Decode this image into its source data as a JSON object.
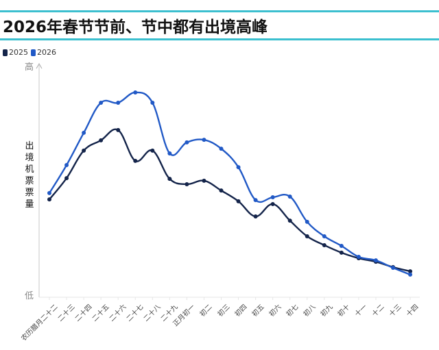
{
  "title": "2026年春节节前、节中都有出境高峰",
  "legend": [
    {
      "label": "2025",
      "color": "#14244a"
    },
    {
      "label": "2026",
      "color": "#2159c6"
    }
  ],
  "axis": {
    "y_title": "出境机票票量",
    "y_high": "高",
    "y_low": "低"
  },
  "chart_data": {
    "type": "line",
    "title": "2026年春节节前、节中都有出境高峰",
    "xlabel": "",
    "ylabel": "出境机票票量",
    "ylim": [
      0,
      100
    ],
    "y_tick_labels": [
      "低",
      "高"
    ],
    "grid": false,
    "legend_position": "top-left",
    "categories": [
      "农历腊月二十二",
      "二十三",
      "二十四",
      "二十五",
      "二十六",
      "二十七",
      "二十八",
      "二十九",
      "正月初一",
      "初二",
      "初三",
      "初四",
      "初五",
      "初六",
      "初七",
      "初八",
      "初九",
      "初十",
      "十一",
      "十二",
      "十三",
      "十四"
    ],
    "series": [
      {
        "name": "2025",
        "color": "#14244a",
        "values": [
          41.9,
          51.0,
          62.8,
          67.2,
          71.6,
          58.4,
          62.8,
          50.7,
          48.4,
          49.9,
          45.7,
          41.1,
          34.6,
          39.9,
          32.8,
          26.1,
          22.3,
          19.1,
          16.7,
          15.2,
          12.9,
          11.1
        ]
      },
      {
        "name": "2026",
        "color": "#2159c6",
        "values": [
          44.6,
          56.6,
          70.4,
          83.3,
          83.3,
          87.7,
          83.3,
          61.6,
          66.3,
          67.4,
          63.6,
          55.7,
          41.6,
          42.8,
          43.1,
          32.3,
          26.1,
          22.0,
          17.3,
          15.8,
          12.6,
          9.7
        ]
      }
    ]
  }
}
